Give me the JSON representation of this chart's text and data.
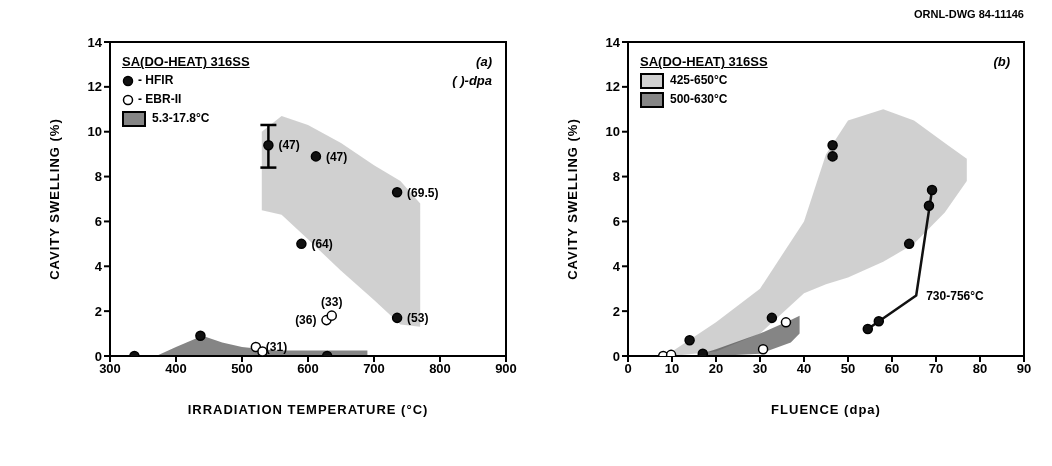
{
  "chart_data": [
    {
      "type": "scatter",
      "xlabel": "IRRADIATION TEMPERATURE (°C)",
      "ylabel": "CAVITY SWELLING (%)",
      "legend_title": "SA(DO-HEAT) 316SS",
      "legend": "top left",
      "xlim": [
        300,
        900
      ],
      "xticks": [
        300,
        400,
        500,
        600,
        700,
        800,
        900
      ],
      "ylim": [
        0,
        14
      ],
      "yticks": [
        0,
        2,
        4,
        6,
        8,
        10,
        12,
        14
      ],
      "series": [
        {
          "name": "- HFIR",
          "color": "#111111",
          "marker": "circle",
          "x": [
            540,
            612,
            735,
            590,
            735,
            337,
            437,
            629
          ],
          "values": [
            9.4,
            8.9,
            7.3,
            5.0,
            1.7,
            0,
            0.9,
            0
          ],
          "errors": [
            [
              8.4,
              10.3
            ],
            null,
            null,
            null,
            null,
            null,
            null,
            null
          ]
        },
        {
          "name": "- EBR-II",
          "color": "#ffffff",
          "marker": "circle",
          "x": [
            628,
            636,
            521,
            531
          ],
          "values": [
            1.6,
            1.8,
            0.4,
            0.2
          ]
        },
        {
          "name": "5.3-17.8°C",
          "type": "line",
          "color": "#333333",
          "x": [
            370,
            400,
            440,
            470,
            500,
            550,
            620,
            690
          ],
          "values": [
            null,
            null,
            null,
            null,
            null,
            null,
            null,
            null
          ],
          "lower": [
            0,
            0,
            0,
            0,
            0,
            0,
            0,
            0
          ],
          "upper": [
            0,
            0.4,
            0.9,
            0.6,
            0.4,
            0.25,
            0.25,
            0.25
          ]
        },
        {
          "type": "line",
          "color": "#b0b0b0",
          "x": [
            530,
            560,
            600,
            650,
            700,
            740,
            770
          ],
          "values": [
            null,
            null,
            null,
            null,
            null,
            null,
            null
          ],
          "lower": [
            6.5,
            6.3,
            5.2,
            3.8,
            2.5,
            1.4,
            1.3
          ],
          "upper": [
            10.0,
            10.7,
            10.3,
            9.5,
            8.5,
            7.8,
            6.8
          ]
        }
      ],
      "annotations": [
        "(a)",
        "( )-dpa",
        {
          "text": "(47)",
          "x": 540,
          "y": 9.4
        },
        {
          "text": "(47)",
          "x": 612,
          "y": 8.9
        },
        {
          "text": "(69.5)",
          "x": 735,
          "y": 7.3
        },
        {
          "text": "(64)",
          "x": 590,
          "y": 5.0
        },
        {
          "text": "(53)",
          "x": 735,
          "y": 1.7
        },
        {
          "text": "(36)",
          "x": 628,
          "y": 1.6
        },
        {
          "text": "(33)",
          "x": 636,
          "y": 1.8
        },
        {
          "text": "(31)",
          "x": 521,
          "y": 0.4
        }
      ]
    },
    {
      "type": "scatter",
      "subtitle": "ORNL-DWG 84-11146",
      "xlabel": "FLUENCE (dpa)",
      "ylabel": "CAVITY SWELLING (%)",
      "legend_title": "SA(DO-HEAT) 316SS",
      "legend": "top left",
      "xlim": [
        0,
        90
      ],
      "xticks": [
        0,
        10,
        20,
        30,
        40,
        50,
        60,
        70,
        80,
        90
      ],
      "ylim": [
        0,
        14
      ],
      "yticks": [
        0,
        2,
        4,
        6,
        8,
        10,
        12,
        14
      ],
      "series": [
        {
          "name": "425-650°C",
          "type": "line",
          "color": "#b0b0b0",
          "x": [
            10,
            20,
            30,
            40,
            45,
            50,
            58,
            65,
            72,
            77
          ],
          "values": [
            null,
            null,
            null,
            null,
            null,
            null,
            null,
            null,
            null,
            null
          ],
          "lower": [
            0,
            0.2,
            1.0,
            2.8,
            3.2,
            3.5,
            4.2,
            5.0,
            6.4,
            7.8
          ],
          "upper": [
            0.2,
            1.5,
            3.0,
            6.0,
            9.0,
            10.5,
            11.0,
            10.5,
            9.5,
            8.8
          ]
        },
        {
          "name": "500-630°C",
          "type": "line",
          "color": "#333333",
          "x": [
            15,
            20,
            30,
            37,
            39
          ],
          "values": [
            null,
            null,
            null,
            null,
            null
          ],
          "lower": [
            0,
            0,
            0.1,
            0.6,
            1.0
          ],
          "upper": [
            0,
            0.3,
            1.0,
            1.6,
            1.8
          ]
        },
        {
          "type": "line",
          "color": "#111111",
          "x": [
            54.5,
            65.5,
            69.1
          ],
          "values": [
            1.2,
            2.7,
            7.4
          ]
        },
        {
          "color": "#111111",
          "marker": "circle",
          "x": [
            46.5,
            46.5,
            69.1,
            68.4,
            63.9,
            32.7,
            14,
            54.5,
            57,
            17
          ],
          "values": [
            9.4,
            8.9,
            7.4,
            6.7,
            5.0,
            1.7,
            0.7,
            1.2,
            1.55,
            0.1
          ]
        },
        {
          "color": "#ffffff",
          "marker": "circle",
          "x": [
            35.9,
            30.7,
            8,
            9.8
          ],
          "values": [
            1.5,
            0.3,
            0,
            0.05
          ]
        }
      ],
      "annotations": [
        "(b)",
        {
          "text": "730-756°C",
          "x": 65.5,
          "y": 2.7
        }
      ]
    }
  ]
}
